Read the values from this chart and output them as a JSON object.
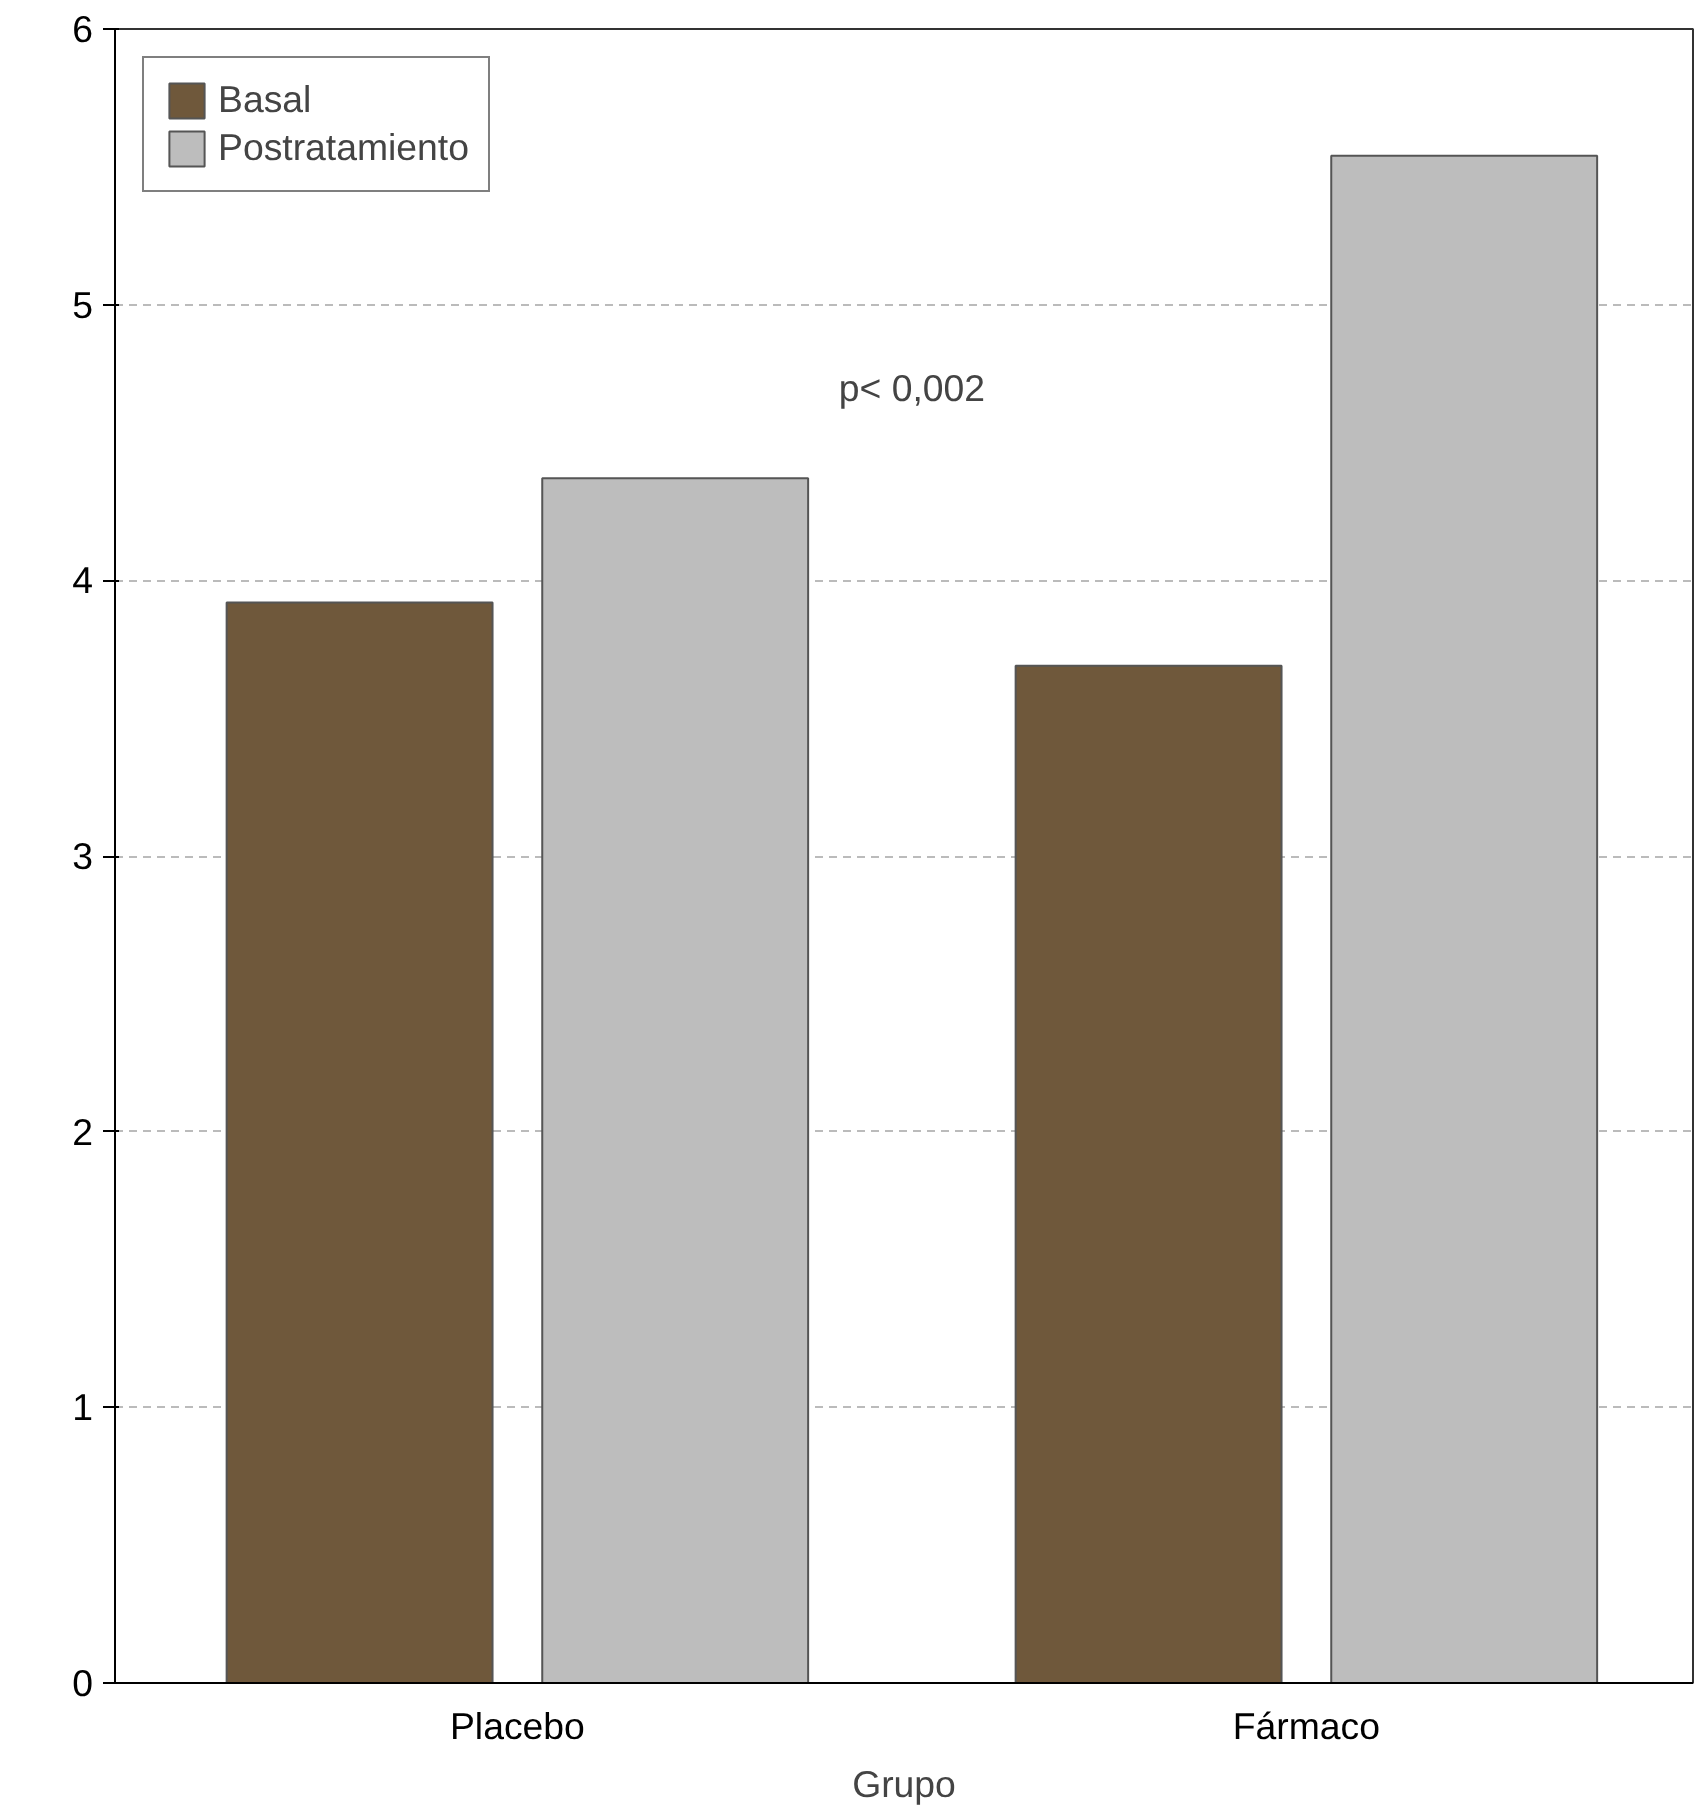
{
  "chart_data": {
    "type": "bar",
    "xlabel": "Grupo",
    "categories": [
      "Placebo",
      "Fármaco"
    ],
    "series": [
      {
        "name": "Basal",
        "color": "#6f583b",
        "values": [
          3.92,
          3.69
        ]
      },
      {
        "name": "Postratamiento",
        "color": "#bdbdbd",
        "values": [
          4.37,
          5.54
        ]
      }
    ],
    "ylim": [
      0,
      6
    ],
    "yticks": [
      0,
      1,
      2,
      3,
      4,
      5,
      6
    ],
    "grid": "y",
    "legend": "top left",
    "annotations": [
      "p< 0,002"
    ]
  }
}
